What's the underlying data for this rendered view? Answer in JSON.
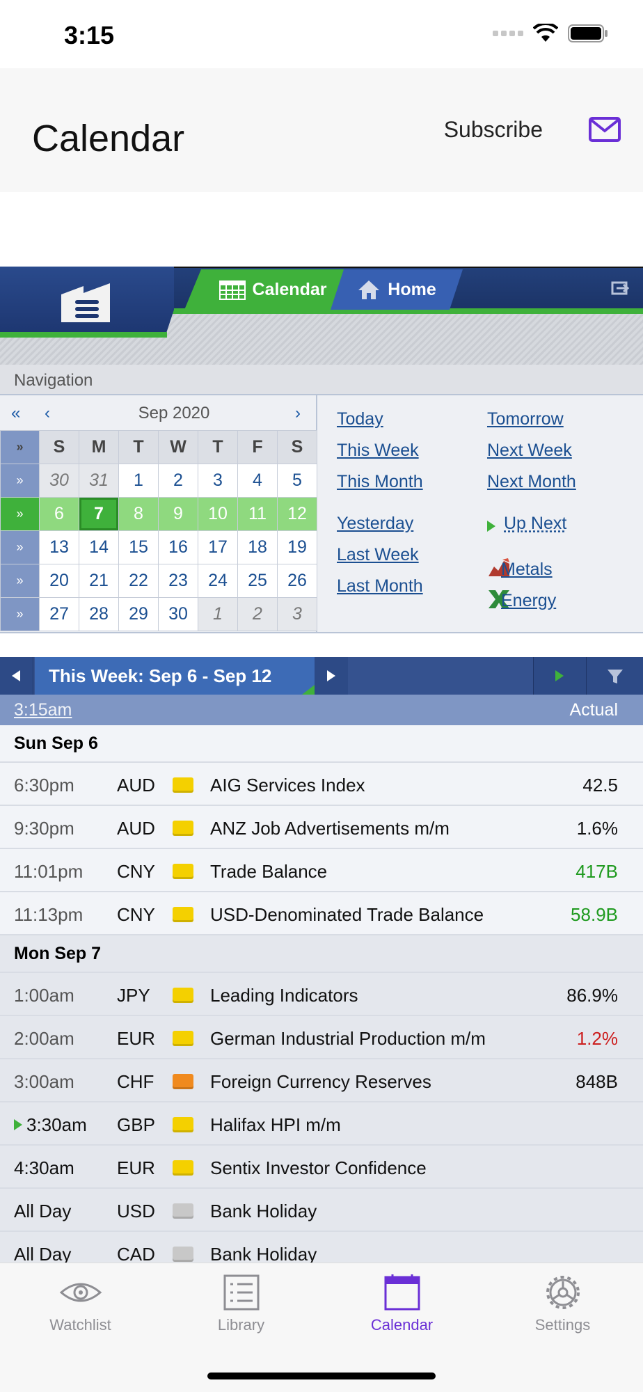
{
  "status": {
    "time": "3:15"
  },
  "header": {
    "title": "Calendar",
    "subscribe": "Subscribe",
    "mail_icon": "mail-icon"
  },
  "banner": {
    "tab_calendar": "Calendar",
    "tab_home": "Home"
  },
  "navigation": {
    "label": "Navigation",
    "month": "Sep 2020",
    "prev_year": "«",
    "prev_month": "‹",
    "next_month": "›",
    "weekdays": [
      "S",
      "M",
      "T",
      "W",
      "T",
      "F",
      "S"
    ],
    "weeks": [
      [
        "30",
        "31",
        "1",
        "2",
        "3",
        "4",
        "5"
      ],
      [
        "6",
        "7",
        "8",
        "9",
        "10",
        "11",
        "12"
      ],
      [
        "13",
        "14",
        "15",
        "16",
        "17",
        "18",
        "19"
      ],
      [
        "20",
        "21",
        "22",
        "23",
        "24",
        "25",
        "26"
      ],
      [
        "27",
        "28",
        "29",
        "30",
        "1",
        "2",
        "3"
      ]
    ],
    "quick_links": {
      "today": "Today",
      "tomorrow": "Tomorrow",
      "this_week": "This Week",
      "next_week": "Next Week",
      "this_month": "This Month",
      "next_month": "Next Month",
      "yesterday": "Yesterday",
      "up_next": "Up Next",
      "last_week": "Last Week",
      "metals": "Metals",
      "last_month": "Last Month",
      "energy": "Energy"
    }
  },
  "week_bar": {
    "label": "This Week: Sep 6 - Sep 12"
  },
  "columns": {
    "time": "3:15am",
    "actual": "Actual"
  },
  "days": [
    {
      "label": "Sun Sep 6",
      "events": [
        {
          "time": "6:30pm",
          "currency": "AUD",
          "impact": "#f4d000",
          "name": "AIG Services Index",
          "actual": "42.5",
          "actual_color": "#111111"
        },
        {
          "time": "9:30pm",
          "currency": "AUD",
          "impact": "#f4d000",
          "name": "ANZ Job Advertisements m/m",
          "actual": "1.6%",
          "actual_color": "#111111"
        },
        {
          "time": "11:01pm",
          "currency": "CNY",
          "impact": "#f4d000",
          "name": "Trade Balance",
          "actual": "417B",
          "actual_color": "#1f9a1f"
        },
        {
          "time": "11:13pm",
          "currency": "CNY",
          "impact": "#f4d000",
          "name": "USD-Denominated Trade Balance",
          "actual": "58.9B",
          "actual_color": "#1f9a1f"
        }
      ]
    },
    {
      "label": "Mon Sep 7",
      "events": [
        {
          "time": "1:00am",
          "currency": "JPY",
          "impact": "#f4d000",
          "name": "Leading Indicators",
          "actual": "86.9%",
          "actual_color": "#111111"
        },
        {
          "time": "2:00am",
          "currency": "EUR",
          "impact": "#f4d000",
          "name": "German Industrial Production m/m",
          "actual": "1.2%",
          "actual_color": "#cc1f1f"
        },
        {
          "time": "3:00am",
          "currency": "CHF",
          "impact": "#f08a1e",
          "name": "Foreign Currency Reserves",
          "actual": "848B",
          "actual_color": "#111111"
        },
        {
          "time": "3:30am",
          "currency": "GBP",
          "impact": "#f4d000",
          "name": "Halifax HPI m/m",
          "actual": "",
          "actual_color": "#111111"
        },
        {
          "time": "4:30am",
          "currency": "EUR",
          "impact": "#f4d000",
          "name": "Sentix Investor Confidence",
          "actual": "",
          "actual_color": "#111111"
        },
        {
          "time": "All Day",
          "currency": "USD",
          "impact": "#c8c8c8",
          "name": "Bank Holiday",
          "actual": "",
          "actual_color": "#111111"
        },
        {
          "time": "All Day",
          "currency": "CAD",
          "impact": "#c8c8c8",
          "name": "Bank Holiday",
          "actual": "",
          "actual_color": "#111111"
        }
      ]
    }
  ],
  "tabs": [
    {
      "label": "Watchlist",
      "icon": "eye-icon"
    },
    {
      "label": "Library",
      "icon": "list-icon"
    },
    {
      "label": "Calendar",
      "icon": "calendar-icon"
    },
    {
      "label": "Settings",
      "icon": "gear-icon"
    }
  ]
}
